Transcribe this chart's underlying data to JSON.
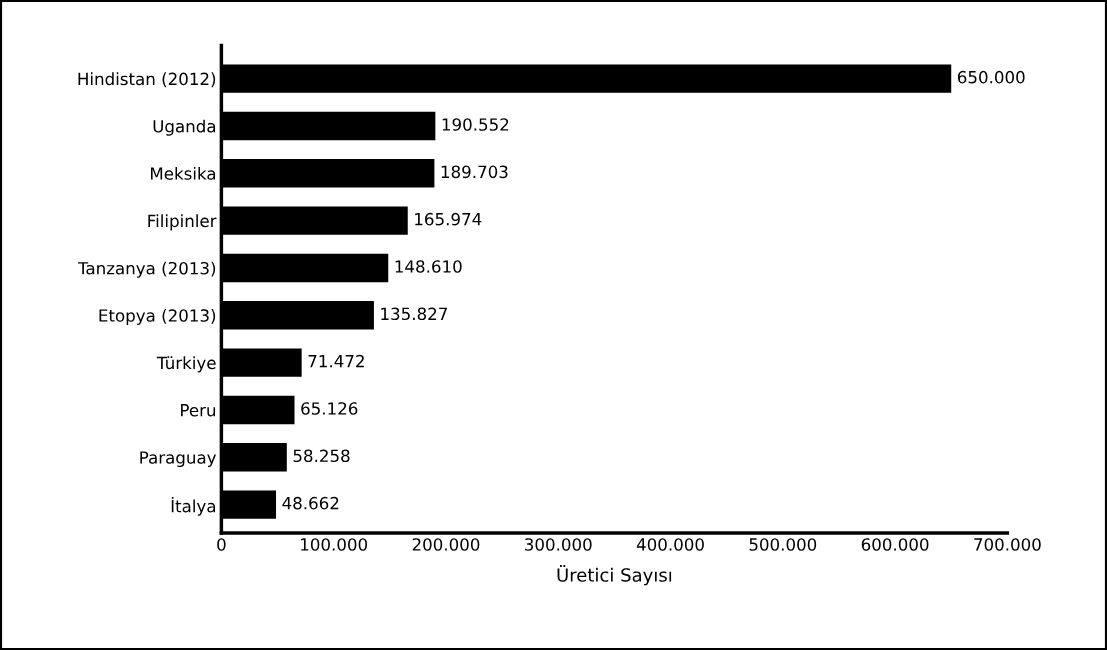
{
  "chart_data": {
    "type": "bar",
    "orientation": "horizontal",
    "xlabel": "Üretici Sayısı",
    "categories": [
      "Hindistan (2012)",
      "Uganda",
      "Meksika",
      "Filipinler",
      "Tanzanya (2013)",
      "Etopya (2013)",
      "Türkiye",
      "Peru",
      "Paraguay",
      "İtalya"
    ],
    "values": [
      650000,
      190552,
      189703,
      165974,
      148610,
      135827,
      71472,
      65126,
      58258,
      48662
    ],
    "value_labels": [
      "650.000",
      "190.552",
      "189.703",
      "165.974",
      "148.610",
      "135.827",
      "71.472",
      "65.126",
      "58.258",
      "48.662"
    ],
    "color": "#000000",
    "xlim": [
      0,
      700000
    ],
    "xticks": [
      0,
      {
        "value": 100000,
        "label": "100.000"
      },
      {
        "value": 200000,
        "label": "200.000"
      },
      {
        "value": 300000,
        "label": "300.000"
      },
      {
        "value": 400000,
        "label": "400.000"
      },
      {
        "value": 500000,
        "label": "500.000"
      },
      {
        "value": 600000,
        "label": "600.000"
      },
      {
        "value": 700000,
        "label": "700.000"
      }
    ],
    "grid": false,
    "legend": false
  }
}
